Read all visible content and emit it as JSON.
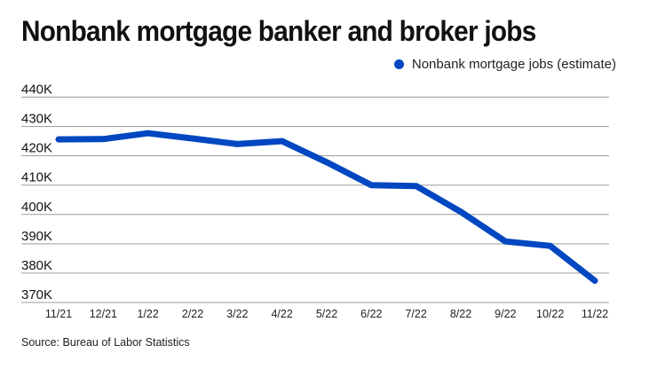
{
  "header": {
    "title": "Nonbank mortgage banker and broker jobs"
  },
  "legend": {
    "label": "Nonbank mortgage jobs (estimate)",
    "color": "#0047C1"
  },
  "footer": {
    "source": "Source: Bureau of Labor Statistics"
  },
  "style": {
    "line_color": "#0047C1",
    "grid_color": "#9a9a9a"
  },
  "chart_data": {
    "type": "line",
    "title": "Nonbank mortgage banker and broker jobs",
    "xlabel": "",
    "ylabel": "",
    "categories": [
      "11/21",
      "12/21",
      "1/22",
      "2/22",
      "3/22",
      "4/22",
      "5/22",
      "6/22",
      "7/22",
      "8/22",
      "9/22",
      "10/22",
      "11/22"
    ],
    "series": [
      {
        "name": "Nonbank mortgage jobs (estimate)",
        "color": "#0047C1",
        "values": [
          425600,
          425700,
          427700,
          425900,
          424000,
          425000,
          417800,
          410000,
          409700,
          400900,
          390800,
          389300,
          377400
        ]
      }
    ],
    "y_ticks": [
      440000,
      430000,
      420000,
      410000,
      400000,
      390000,
      380000,
      370000
    ],
    "y_tick_labels": [
      "440K",
      "430K",
      "420K",
      "410K",
      "400K",
      "390K",
      "380K",
      "370K"
    ],
    "ylim": [
      370000,
      440000
    ],
    "grid": true,
    "legend_position": "top-right"
  }
}
